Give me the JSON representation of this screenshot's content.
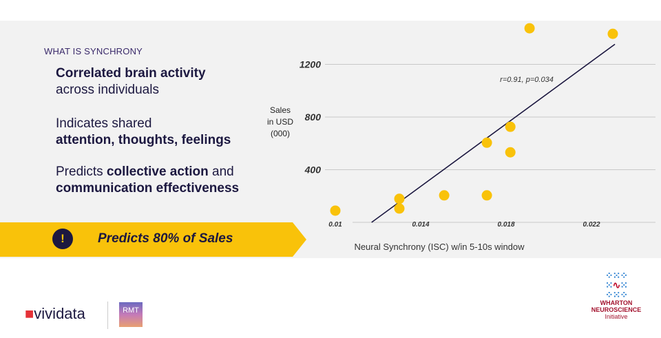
{
  "left": {
    "kicker": "WHAT IS SYNCHRONY",
    "p1_bold": "Correlated brain activity",
    "p1_rest": "across individuals",
    "p2_pre": "Indicates shared",
    "p2_bold": "attention, thoughts, feelings",
    "p3_pre": "Predicts ",
    "p3_bold1": "collective action",
    "p3_mid": " and",
    "p3_bold2": "communication effectiveness"
  },
  "banner": {
    "text": "Predicts 80% of Sales",
    "icon": "exclamation-icon"
  },
  "colors": {
    "accent": "#f9c20a",
    "navy": "#1c1840"
  },
  "logos": {
    "vividata": "vividata",
    "rmt": "RMT",
    "wharton": [
      "WHARTON",
      "NEUROSCIENCE",
      "Initiative"
    ]
  },
  "chart_data": {
    "type": "scatter",
    "ylabel": [
      "Sales",
      "in USD",
      "(000)"
    ],
    "xlabel": "Neural Synchrony (ISC) w/in 5-10s window",
    "annotation": "r=0.91, p=0.034",
    "xlim": [
      0.01,
      0.024
    ],
    "ylim": [
      0,
      1500
    ],
    "xticks": [
      0.01,
      0.014,
      0.018,
      0.022
    ],
    "xtick_labels": [
      "0.01",
      "0.014",
      "0.018",
      "0.022"
    ],
    "yticks": [
      400,
      800,
      1200
    ],
    "ytick_labels": [
      "400",
      "800",
      "1200"
    ],
    "grid": true,
    "points": [
      [
        0.01,
        89
      ],
      [
        0.013,
        179
      ],
      [
        0.013,
        105
      ],
      [
        0.0151,
        205
      ],
      [
        0.0171,
        605
      ],
      [
        0.0171,
        205
      ],
      [
        0.0182,
        726
      ],
      [
        0.0182,
        532
      ],
      [
        0.0191,
        1474
      ],
      [
        0.023,
        1432
      ]
    ],
    "trendline": [
      [
        0.0117,
        0
      ],
      [
        0.0231,
        1353
      ]
    ]
  }
}
